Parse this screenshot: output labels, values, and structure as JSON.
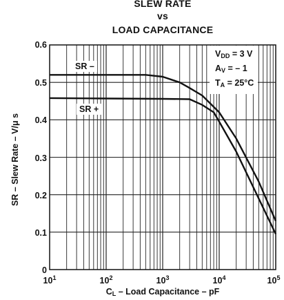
{
  "title": {
    "line1": "SLEW RATE",
    "line2": "vs",
    "line3": "LOAD CAPACITANCE"
  },
  "axes": {
    "ylabel": "SR – Slew Rate – V/μ s",
    "xlabel_prefix": "C",
    "xlabel_sub": "L",
    "xlabel_rest": " – Load Capacitance – pF",
    "yticks": [
      "0",
      "0.1",
      "0.2",
      "0.3",
      "0.4",
      "0.5",
      "0.6"
    ],
    "xticks": [
      {
        "base": "10",
        "exp": "1"
      },
      {
        "base": "10",
        "exp": "2"
      },
      {
        "base": "10",
        "exp": "3"
      },
      {
        "base": "10",
        "exp": "4"
      },
      {
        "base": "10",
        "exp": "5"
      }
    ]
  },
  "conditions": {
    "vdd_sym": "V",
    "vdd_sub": "DD",
    "vdd_val": " = 3 V",
    "av_sym": "A",
    "av_sub": "V",
    "av_val": " = – 1",
    "ta_sym": "T",
    "ta_sub": "A",
    "ta_val": " = 25°C"
  },
  "chart_data": {
    "type": "line",
    "title": "SLEW RATE vs LOAD CAPACITANCE",
    "xlabel": "CL – Load Capacitance – pF",
    "ylabel": "SR – Slew Rate – V/μ s",
    "xscale": "log",
    "xlim": [
      10,
      100000
    ],
    "ylim": [
      0,
      0.6
    ],
    "grid": true,
    "series": [
      {
        "name": "SR –",
        "x": [
          10,
          100,
          500,
          1000,
          2000,
          3000,
          5000,
          10000,
          20000,
          50000,
          100000
        ],
        "y": [
          0.52,
          0.52,
          0.52,
          0.515,
          0.5,
          0.485,
          0.465,
          0.42,
          0.35,
          0.235,
          0.13
        ]
      },
      {
        "name": "SR +",
        "x": [
          10,
          100,
          1000,
          3000,
          5000,
          8000,
          10000,
          20000,
          50000,
          100000
        ],
        "y": [
          0.458,
          0.457,
          0.456,
          0.455,
          0.44,
          0.42,
          0.395,
          0.315,
          0.19,
          0.095
        ]
      }
    ]
  }
}
